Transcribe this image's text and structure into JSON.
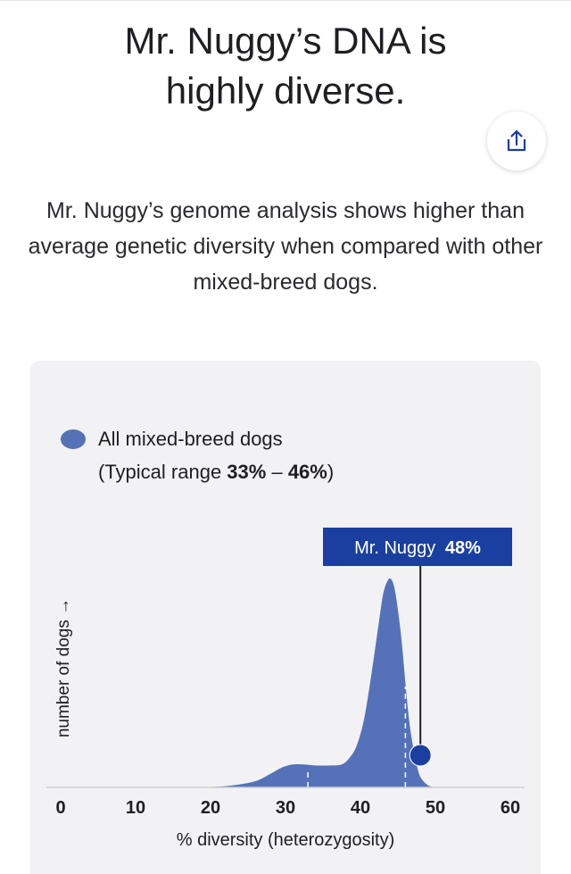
{
  "header": {
    "title_line1": "Mr. Nuggy’s DNA is",
    "title_line2": "highly diverse."
  },
  "description": "Mr. Nuggy’s genome analysis shows higher than average genetic diversity when compared with other mixed-breed dogs.",
  "share_button": {
    "icon": "share-icon"
  },
  "colors": {
    "distribution": "#5572b9",
    "marker": "#1b3fa0",
    "axis": "#d0d0d0"
  },
  "chart_data": {
    "type": "area",
    "title": "",
    "xlabel": "% diversity (heterozygosity)",
    "ylabel": "number of dogs →",
    "xlim": [
      0,
      60
    ],
    "xticks": [
      "0",
      "10",
      "20",
      "30",
      "40",
      "50",
      "60"
    ],
    "legend": {
      "label": "All mixed-breed dogs",
      "range_prefix": "(Typical range ",
      "range_low": "33%",
      "range_sep": " – ",
      "range_high": "46%",
      "range_suffix": ")"
    },
    "typical_range": [
      33,
      46
    ],
    "marker": {
      "label": "Mr. Nuggy",
      "value_text": "48%",
      "value": 48
    },
    "series": [
      {
        "x": [
          15,
          20,
          23,
          26,
          28,
          29.5,
          31,
          32.5,
          34,
          36,
          37.5,
          38.5,
          39.5,
          40.5,
          41.5,
          42.5,
          43,
          43.5,
          44,
          44.5,
          45,
          45.5,
          46,
          46.5,
          47,
          47.5,
          48,
          49,
          50
        ],
        "y": [
          0,
          0.2,
          1,
          3,
          6.5,
          9.5,
          11,
          11,
          10.5,
          10.5,
          11,
          14,
          20,
          33,
          55,
          80,
          92,
          98,
          100,
          96,
          85,
          70,
          50,
          32,
          20,
          11,
          5,
          1,
          0
        ]
      }
    ]
  }
}
